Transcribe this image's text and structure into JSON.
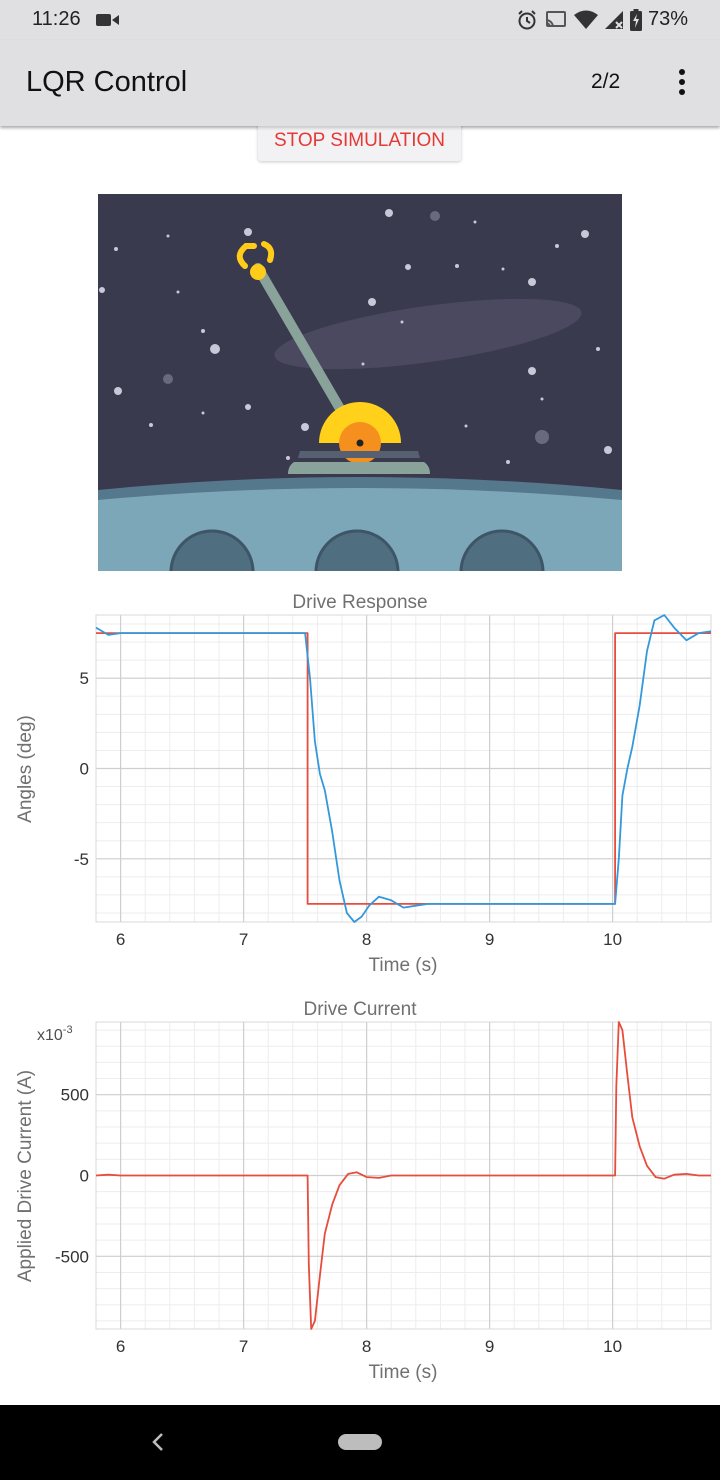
{
  "status_bar": {
    "time": "11:26",
    "battery": "73%",
    "icons": [
      "video-camera-icon",
      "alarm-icon",
      "cast-icon",
      "wifi-icon",
      "signal-icon",
      "battery-icon"
    ]
  },
  "app_bar": {
    "title": "LQR Control",
    "page_indicator": "2/2",
    "menu_icon": "more-vert-icon"
  },
  "stop_button": {
    "label": "STOP SIMULATION",
    "color": "#e53935"
  },
  "simulation": {
    "arm_angle_deg": -30,
    "colors": {
      "sky": "#3a3a4e",
      "ground": "#7ba7b8",
      "arm": "#8aa39a",
      "base": "#ffd11a",
      "hub": "#f5901e",
      "claw": "#ffcc1a"
    }
  },
  "chart_data": [
    {
      "type": "line",
      "title": "Drive Response",
      "xlabel": "Time (s)",
      "ylabel": "Angles (deg)",
      "xlim": [
        5.8,
        10.8
      ],
      "ylim": [
        -8.5,
        8.5
      ],
      "xticks": [
        6,
        7,
        8,
        9,
        10
      ],
      "yticks": [
        -5,
        0,
        5
      ],
      "ytick_labels": [
        "-5",
        "0",
        "5"
      ],
      "grid": true,
      "series": [
        {
          "color": "#e74c3c",
          "x": [
            5.8,
            7.52,
            7.52,
            10.02,
            10.02,
            10.8
          ],
          "y": [
            7.5,
            7.5,
            -7.5,
            -7.5,
            7.5,
            7.5
          ]
        },
        {
          "color": "#3498db",
          "x": [
            5.8,
            5.9,
            6.0,
            6.2,
            7.5,
            7.54,
            7.58,
            7.62,
            7.66,
            7.72,
            7.78,
            7.84,
            7.9,
            7.96,
            8.02,
            8.1,
            8.2,
            8.3,
            8.4,
            8.5,
            8.6,
            8.8,
            9.5,
            10.02,
            10.05,
            10.08,
            10.12,
            10.16,
            10.22,
            10.28,
            10.34,
            10.42,
            10.5,
            10.6,
            10.7,
            10.8
          ],
          "y": [
            7.8,
            7.4,
            7.5,
            7.5,
            7.5,
            5.0,
            1.5,
            -0.3,
            -1.2,
            -3.5,
            -6.2,
            -8.0,
            -8.5,
            -8.2,
            -7.6,
            -7.1,
            -7.3,
            -7.7,
            -7.6,
            -7.5,
            -7.5,
            -7.5,
            -7.5,
            -7.5,
            -5.0,
            -1.5,
            0.0,
            1.2,
            3.5,
            6.5,
            8.2,
            8.5,
            7.8,
            7.1,
            7.5,
            7.6
          ]
        }
      ]
    },
    {
      "type": "line",
      "title": "Drive Current",
      "xlabel": "Time (s)",
      "ylabel": "Applied Drive Current (A)",
      "scale_label": "x10-3",
      "xlim": [
        5.8,
        10.8
      ],
      "ylim": [
        -950,
        950
      ],
      "xticks": [
        6,
        7,
        8,
        9,
        10
      ],
      "yticks": [
        -500,
        0,
        500
      ],
      "ytick_labels": [
        "-500",
        "0",
        "500"
      ],
      "grid": true,
      "series": [
        {
          "color": "#e74c3c",
          "x": [
            5.8,
            5.9,
            6.0,
            7.52,
            7.53,
            7.55,
            7.58,
            7.62,
            7.66,
            7.72,
            7.78,
            7.85,
            7.92,
            8.0,
            8.1,
            8.2,
            8.4,
            10.02,
            10.03,
            10.05,
            10.08,
            10.12,
            10.16,
            10.22,
            10.28,
            10.35,
            10.42,
            10.5,
            10.6,
            10.7,
            10.8
          ],
          "y": [
            0,
            5,
            0,
            0,
            -550,
            -950,
            -900,
            -620,
            -360,
            -180,
            -60,
            10,
            20,
            -10,
            -15,
            0,
            0,
            0,
            550,
            950,
            900,
            620,
            360,
            180,
            60,
            -10,
            -20,
            5,
            10,
            0,
            0
          ]
        }
      ]
    }
  ]
}
